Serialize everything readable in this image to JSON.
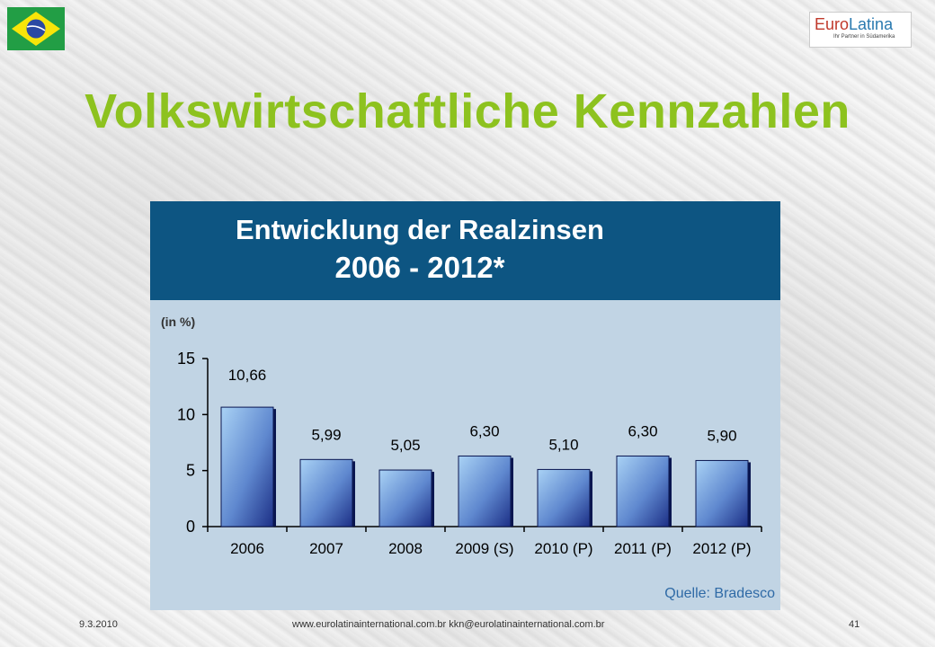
{
  "slide": {
    "title": "Volkswirtschaftliche Kennzahlen",
    "logo": {
      "part1": "Euro",
      "part2": "Latina",
      "tagline": "Ihr Partner in Südamerika"
    },
    "footer": {
      "date": "9.3.2010",
      "center": "www.eurolatinainternational.com.br   kkn@eurolatinainternational.com.br",
      "page": "41"
    }
  },
  "chart_data": {
    "type": "bar",
    "title_line1": "Entwicklung der Realzinsen",
    "title_line2": "2006 - 2012*",
    "unit": "(in %)",
    "source": "Quelle:  Bradesco",
    "categories": [
      "2006",
      "2007",
      "2008",
      "2009 (S)",
      "2010 (P)",
      "2011 (P)",
      "2012 (P)"
    ],
    "values": [
      10.66,
      5.99,
      5.05,
      6.3,
      5.1,
      6.3,
      5.9
    ],
    "value_labels": [
      "10,66",
      "5,99",
      "5,05",
      "6,30",
      "5,10",
      "6,30",
      "5,90"
    ],
    "ylim": [
      0,
      15
    ],
    "yticks": [
      0,
      5,
      10,
      15
    ],
    "colors": {
      "header": "#0d5582",
      "plot_bg": "#c1d4e4",
      "bar_top": "#a9d2f5",
      "bar_bottom": "#1c2f86",
      "title": "#8dc21f"
    }
  }
}
